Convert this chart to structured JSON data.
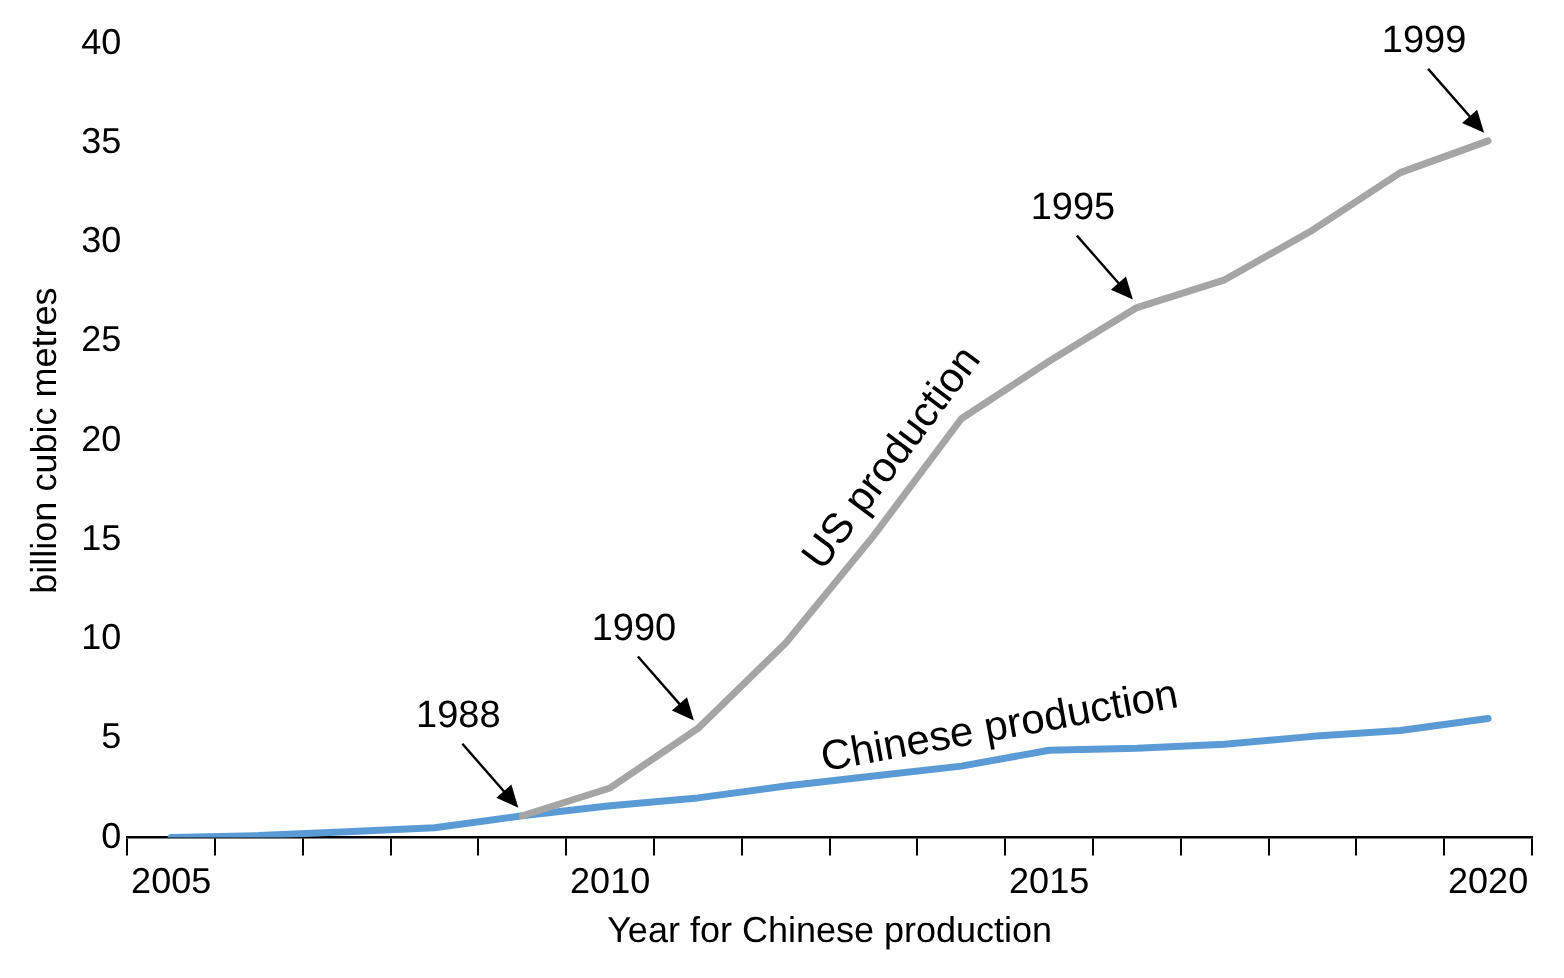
{
  "chart_data": {
    "type": "line",
    "xlabel": "Year for Chinese production",
    "ylabel": "billion cubic metres",
    "x": [
      2005,
      2006,
      2007,
      2008,
      2009,
      2010,
      2011,
      2012,
      2013,
      2014,
      2015,
      2016,
      2017,
      2018,
      2019,
      2020
    ],
    "series": [
      {
        "name": "US production",
        "color": "#a5a5a5",
        "values": [
          null,
          null,
          null,
          null,
          1.1,
          2.5,
          5.5,
          9.8,
          15.2,
          21.1,
          24.0,
          26.7,
          28.1,
          30.6,
          33.5,
          35.1
        ]
      },
      {
        "name": "Chinese production",
        "color": "#5b9bd5",
        "values": [
          0,
          0.1,
          0.3,
          0.5,
          1.1,
          1.6,
          2.0,
          2.6,
          3.1,
          3.6,
          4.4,
          4.5,
          4.7,
          5.1,
          5.4,
          6.0
        ]
      }
    ],
    "xlim": [
      2004.5,
      2020.5
    ],
    "xticks": [
      {
        "value": 2004.5,
        "label": null
      },
      2005,
      {
        "value": 2005.5,
        "label": null
      },
      {
        "value": 2006.5,
        "label": null
      },
      {
        "value": 2007.5,
        "label": null
      },
      {
        "value": 2008.5,
        "label": null
      },
      {
        "value": 2009.5,
        "label": null
      },
      2010,
      {
        "value": 2010.5,
        "label": null
      },
      {
        "value": 2011.5,
        "label": null
      },
      {
        "value": 2012.5,
        "label": null
      },
      {
        "value": 2013.5,
        "label": null
      },
      {
        "value": 2014.5,
        "label": null
      },
      2015,
      {
        "value": 2015.5,
        "label": null
      },
      {
        "value": 2016.5,
        "label": null
      },
      {
        "value": 2017.5,
        "label": null
      },
      {
        "value": 2018.5,
        "label": null
      },
      {
        "value": 2019.5,
        "label": null
      },
      2020,
      {
        "value": 2020.5,
        "label": null
      }
    ],
    "ylim": [
      0,
      40
    ],
    "yticks": [
      0,
      5,
      10,
      15,
      20,
      25,
      30,
      35,
      40
    ],
    "grid": false,
    "legend": false,
    "marker": "none",
    "line_style": "solid",
    "annotations": [
      {
        "text": "1988",
        "x": 2009,
        "y": 1.1
      },
      {
        "text": "1990",
        "x": 2011,
        "y": 5.5
      },
      {
        "text": "1995",
        "x": 2016,
        "y": 26.7
      },
      {
        "text": "1999",
        "x": 2020,
        "y": 35.1
      }
    ]
  }
}
